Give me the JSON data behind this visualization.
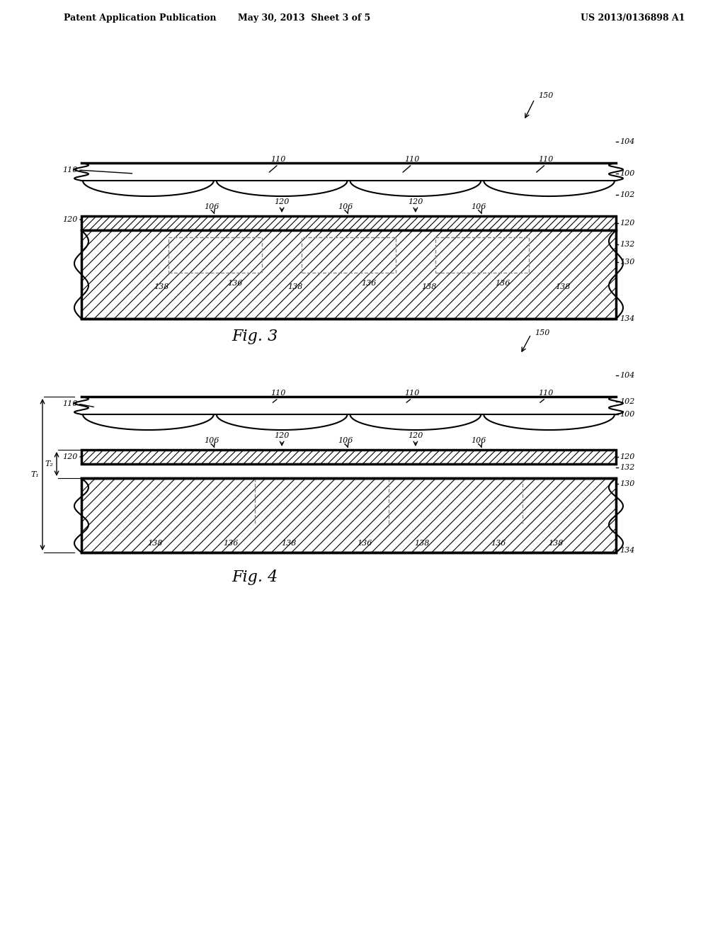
{
  "bg_color": "#ffffff",
  "header_left": "Patent Application Publication",
  "header_mid": "May 30, 2013  Sheet 3 of 5",
  "header_right": "US 2013/0136898 A1",
  "fig3_label": "Fig. 3",
  "fig4_label": "Fig. 4",
  "line_color": "#000000",
  "hatch_color": "#000000",
  "dashed_color": "#888888"
}
